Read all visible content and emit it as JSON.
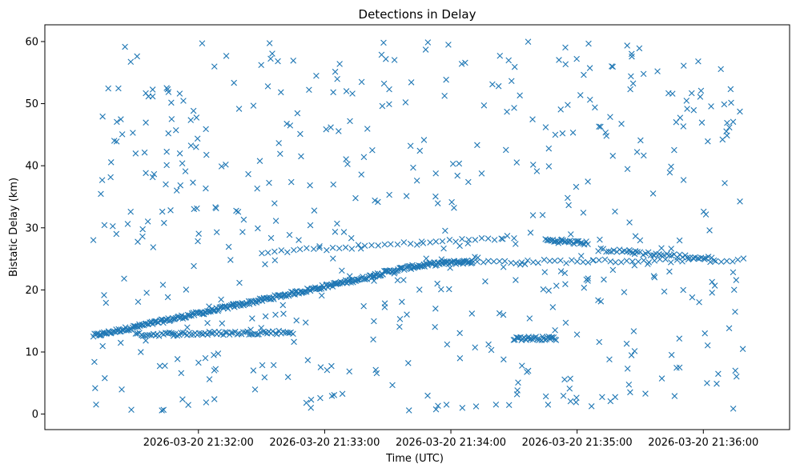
{
  "chart_data": {
    "type": "scatter",
    "title": "Detections in Delay",
    "xlabel": "Time (UTC)",
    "ylabel": "Bistatic Delay (km)",
    "marker": "x",
    "color": "#1f77b4",
    "grid": false,
    "x_start": "2026-03-20 21:31:10",
    "x_end": "2026-03-20 21:36:19",
    "xlim": [
      "2026-03-20 21:30:47",
      "2026-03-20 21:36:41"
    ],
    "ylim": [
      -2.5,
      62.7
    ],
    "x_ticks": [
      "2026-03-20 21:32:00",
      "2026-03-20 21:33:00",
      "2026-03-20 21:34:00",
      "2026-03-20 21:35:00",
      "2026-03-20 21:36:00"
    ],
    "y_ticks": [
      0,
      10,
      20,
      30,
      40,
      50,
      60
    ],
    "tracks": [
      {
        "name": "",
        "t0": "2026-03-20 21:31:10",
        "t1": "2026-03-20 21:34:10",
        "t_mid": "2026-03-20 21:33:20",
        "y0": 12.6,
        "y_mid": 22.0,
        "y1": 24.5,
        "count": 330
      },
      {
        "name": "",
        "t0": "2026-03-20 21:31:30",
        "t1": "2026-03-20 21:32:45",
        "y0": 12.8,
        "y1": 13.2,
        "count": 80
      },
      {
        "name": "",
        "t0": "2026-03-20 21:34:10",
        "t1": "2026-03-20 21:36:19",
        "y0": 24.5,
        "y1": 24.8,
        "count": 50
      },
      {
        "name": "",
        "t0": "2026-03-20 21:32:30",
        "t1": "2026-03-20 21:34:30",
        "y0": 26.0,
        "y1": 28.5,
        "count": 40
      },
      {
        "name": "",
        "t0": "2026-03-20 21:34:45",
        "t1": "2026-03-20 21:35:05",
        "y0": 28.0,
        "y1": 27.5,
        "count": 30
      },
      {
        "name": "",
        "t0": "2026-03-20 21:35:10",
        "t1": "2026-03-20 21:36:05",
        "y0": 26.5,
        "y1": 25.0,
        "count": 45
      },
      {
        "name": "",
        "t0": "2026-03-20 21:34:30",
        "t1": "2026-03-20 21:34:50",
        "y0": 12.2,
        "y1": 12.2,
        "count": 35
      }
    ],
    "noise_points": 520
  }
}
